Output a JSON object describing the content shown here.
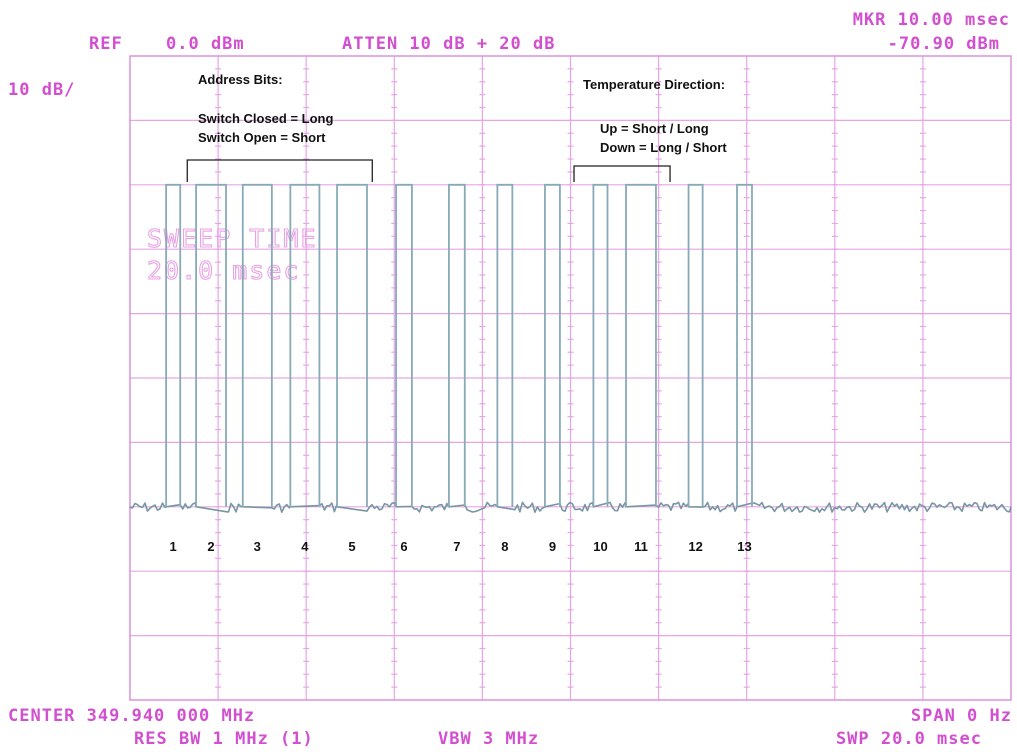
{
  "analyzer": {
    "ref_label": "REF",
    "ref_value": "0.0 dBm",
    "atten": "ATTEN 10 dB + 20 dB",
    "marker_label": "MKR 10.00 msec",
    "marker_value": "-70.90 dBm",
    "scale": "10 dB/",
    "sweep_time_label": "SWEEP TIME",
    "sweep_time_value": "20.0 msec",
    "center": "CENTER 349.940 000 MHz",
    "span": "SPAN 0  Hz",
    "res_bw": "RES BW 1 MHz (1)",
    "vbw": "VBW 3 MHz",
    "swp": "SWP 20.0 msec"
  },
  "annotations": {
    "address_title": "Address Bits:",
    "address_line1": "Switch Closed = Long",
    "address_line2": "Switch Open = Short",
    "temp_title": "Temperature Direction:",
    "temp_line1": "Up = Short / Long",
    "temp_line2": "Down = Long / Short"
  },
  "chart_data": {
    "type": "line",
    "x_unit": "msec",
    "y_unit": "dBm",
    "xlim": [
      0,
      20
    ],
    "ylim": [
      -100,
      0
    ],
    "grid": true,
    "grid_divisions": {
      "x": 10,
      "y": 10
    },
    "high_level_dbm": -20,
    "low_level_dbm": -70,
    "pulses": [
      {
        "label": "1",
        "start": 0.82,
        "end": 1.14
      },
      {
        "label": "2",
        "start": 1.5,
        "end": 2.18
      },
      {
        "label": "3",
        "start": 2.56,
        "end": 3.22
      },
      {
        "label": "4",
        "start": 3.64,
        "end": 4.3
      },
      {
        "label": "5",
        "start": 4.7,
        "end": 5.38
      },
      {
        "label": "6",
        "start": 6.04,
        "end": 6.4
      },
      {
        "label": "7",
        "start": 7.24,
        "end": 7.6
      },
      {
        "label": "8",
        "start": 8.34,
        "end": 8.68
      },
      {
        "label": "9",
        "start": 9.42,
        "end": 9.76
      },
      {
        "label": "10",
        "start": 10.52,
        "end": 10.84
      },
      {
        "label": "11",
        "start": 11.26,
        "end": 11.94
      },
      {
        "label": "12",
        "start": 12.68,
        "end": 13.0
      },
      {
        "label": "13",
        "start": 13.78,
        "end": 14.12
      }
    ],
    "brackets": [
      {
        "group": "address",
        "start": 1.3,
        "end": 5.5
      },
      {
        "group": "temperature",
        "start": 10.08,
        "end": 12.26
      }
    ]
  }
}
